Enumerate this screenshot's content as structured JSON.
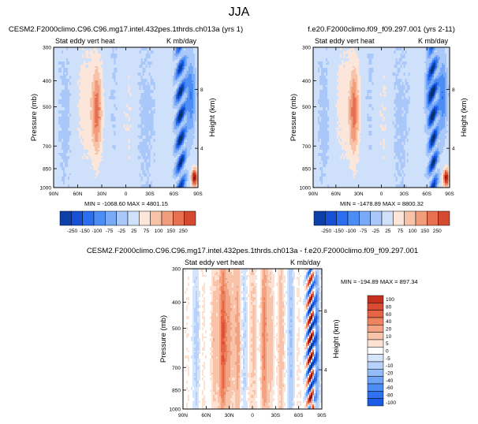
{
  "figure_title": "JJA",
  "colors": {
    "map_top": [
      "#08306b",
      "#0c3fa8",
      "#1550d6",
      "#2b6ef2",
      "#4c8cf5",
      "#79aaf7",
      "#a9c8f9",
      "#cfe0fb",
      "#fce6da",
      "#f7c2a8",
      "#f19c7b",
      "#e6704f",
      "#d34a30",
      "#b8261a",
      "#8f1010"
    ],
    "map_diff": [
      "#08306b",
      "#0b3a98",
      "#1148c4",
      "#1b5ce6",
      "#2f72f0",
      "#4c8cf5",
      "#6ea3f6",
      "#93bbf8",
      "#b7d2fa",
      "#d6e5fc",
      "#ffffff",
      "#fde2d4",
      "#f9c3a9",
      "#f4a382",
      "#ee835f",
      "#e66445",
      "#d94a33",
      "#c6311f",
      "#ad1c12",
      "#8f0d0a",
      "#700404"
    ]
  },
  "chart_data": [
    {
      "type": "heatmap",
      "title": "CESM2.F2000climo.C96.C96.mg17.intel.432pes.1thrds.ch013a (yrs 1)",
      "left_label": "Stat eddy vert heat",
      "right_label": "K mb/day",
      "ylabel": "Pressure (mb)",
      "ylabel_right": "Height (km)",
      "x_ticks": [
        "90N",
        "60N",
        "30N",
        "0",
        "30S",
        "60S",
        "90S"
      ],
      "y_ticks": [
        "300",
        "400",
        "500",
        "700",
        "850",
        "1000"
      ],
      "height_ticks": [
        "8",
        "4"
      ],
      "ylim": [
        1000,
        300
      ],
      "log_pressure": true,
      "minmax": "MIN = -1068.60   MAX = 4801.15",
      "colorbar_labels": [
        "-250",
        "-150",
        "-100",
        "-75",
        "-25",
        "25",
        "75",
        "100",
        "150",
        "250"
      ]
    },
    {
      "type": "heatmap",
      "title": "f.e20.F2000climo.f09_f09.297.001 (yrs 2-11)",
      "left_label": "Stat eddy vert heat",
      "right_label": "K mb/day",
      "ylabel": "Pressure (mb)",
      "ylabel_right": "Height (km)",
      "x_ticks": [
        "90N",
        "60N",
        "30N",
        "0",
        "30S",
        "60S",
        "90S"
      ],
      "y_ticks": [
        "300",
        "400",
        "500",
        "700",
        "850",
        "1000"
      ],
      "height_ticks": [
        "8",
        "4"
      ],
      "ylim": [
        1000,
        300
      ],
      "log_pressure": true,
      "minmax": "MIN = -1478.89   MAX = 8800.32",
      "colorbar_labels": [
        "-250",
        "-150",
        "-100",
        "-75",
        "-25",
        "25",
        "75",
        "100",
        "150",
        "250"
      ]
    },
    {
      "type": "heatmap",
      "title": "CESM2.F2000climo.C96.C96.mg17.intel.432pes.1thrds.ch013a - f.e20.F2000climo.f09_f09.297.001",
      "left_label": "Stat eddy vert heat",
      "right_label": "K mb/day",
      "ylabel": "Pressure (mb)",
      "ylabel_right": "Height (km)",
      "x_ticks": [
        "90N",
        "60N",
        "30N",
        "0",
        "30S",
        "60S",
        "90S"
      ],
      "y_ticks": [
        "300",
        "400",
        "500",
        "700",
        "850",
        "1000"
      ],
      "height_ticks": [
        "8",
        "4"
      ],
      "ylim": [
        1000,
        300
      ],
      "log_pressure": true,
      "minmax": "MIN = -194.89   MAX = 897.34",
      "colorbar_labels": [
        "100",
        "80",
        "60",
        "40",
        "20",
        "10",
        "5",
        "0",
        "-5",
        "-10",
        "-20",
        "-40",
        "-60",
        "-80",
        "-100"
      ]
    }
  ]
}
